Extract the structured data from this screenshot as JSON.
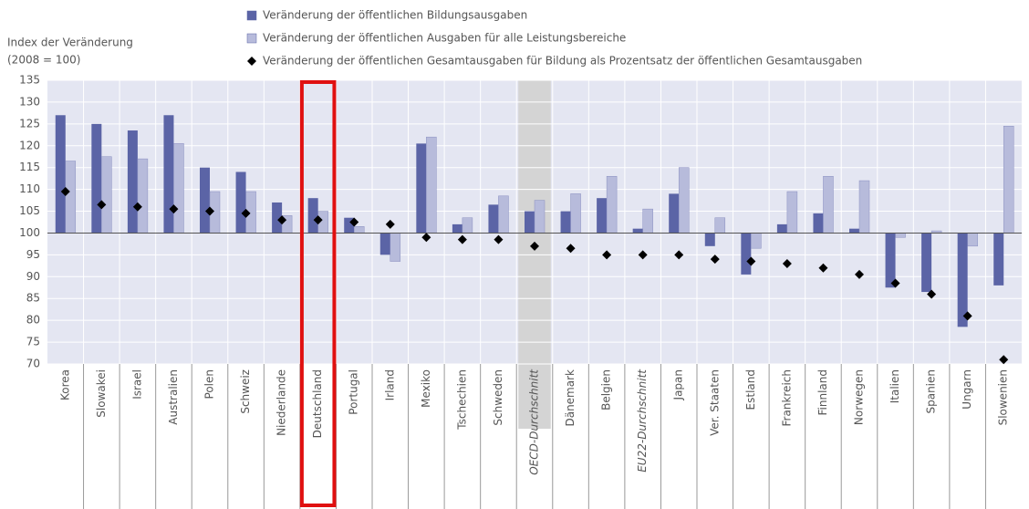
{
  "chart_data": {
    "type": "bar",
    "y_label_line1": "Index der Veränderung",
    "y_label_line2": "(2008 = 100)",
    "categories": [
      "Korea",
      "Slowakei",
      "Israel",
      "Australien",
      "Polen",
      "Schweiz",
      "Niederlande",
      "Deutschland",
      "Portugal",
      "Irland",
      "Mexiko",
      "Tschechien",
      "Schweden",
      "OECD-Durchschnitt",
      "Dänemark",
      "Belgien",
      "EU22-Durchschnitt",
      "Japan",
      "Ver. Staaten",
      "Estland",
      "Frankreich",
      "Finnland",
      "Norwegen",
      "Italien",
      "Spanien",
      "Ungarn",
      "Slowenien"
    ],
    "series": [
      {
        "name": "Veränderung der öffentlichen Bildungsausgaben",
        "color": "#5b64a6",
        "marker": "bar",
        "values": [
          127,
          125,
          123.5,
          127,
          115,
          114,
          107,
          108,
          103.5,
          95,
          120.5,
          102,
          106.5,
          105,
          105,
          108,
          101,
          109,
          97,
          90.5,
          102,
          104.5,
          101,
          87.5,
          86.5,
          78.5,
          88
        ]
      },
      {
        "name": "Veränderung der öffentlichen Ausgaben für alle Leistungsbereiche",
        "color": "#b7bbdb",
        "marker": "bar",
        "values": [
          116.5,
          117.5,
          117,
          120.5,
          109.5,
          109.5,
          104,
          105,
          101.5,
          93.5,
          122,
          103.5,
          108.5,
          107.5,
          109,
          113,
          105.5,
          115,
          103.5,
          96.5,
          109.5,
          113,
          112,
          99,
          100.5,
          97,
          124.5
        ]
      },
      {
        "name": "Veränderung der öffentlichen Gesamtausgaben für Bildung als Prozentsatz der öffentlichen Gesamtausgaben",
        "color": "#000000",
        "marker": "diamond",
        "values": [
          109.5,
          106.5,
          106,
          105.5,
          105,
          104.5,
          103,
          103,
          102.5,
          102,
          99,
          98.5,
          98.5,
          97,
          96.5,
          95,
          95,
          95,
          94,
          93.5,
          93,
          92,
          90.5,
          88.5,
          86,
          81,
          71
        ]
      }
    ],
    "ylim": [
      70,
      135
    ],
    "yticks": [
      70,
      75,
      80,
      85,
      90,
      95,
      100,
      105,
      110,
      115,
      120,
      125,
      130,
      135
    ],
    "baseline": 100,
    "grid": true,
    "highlight_category": 7,
    "shaded_category": 13,
    "italic_categories": [
      13,
      16
    ]
  }
}
